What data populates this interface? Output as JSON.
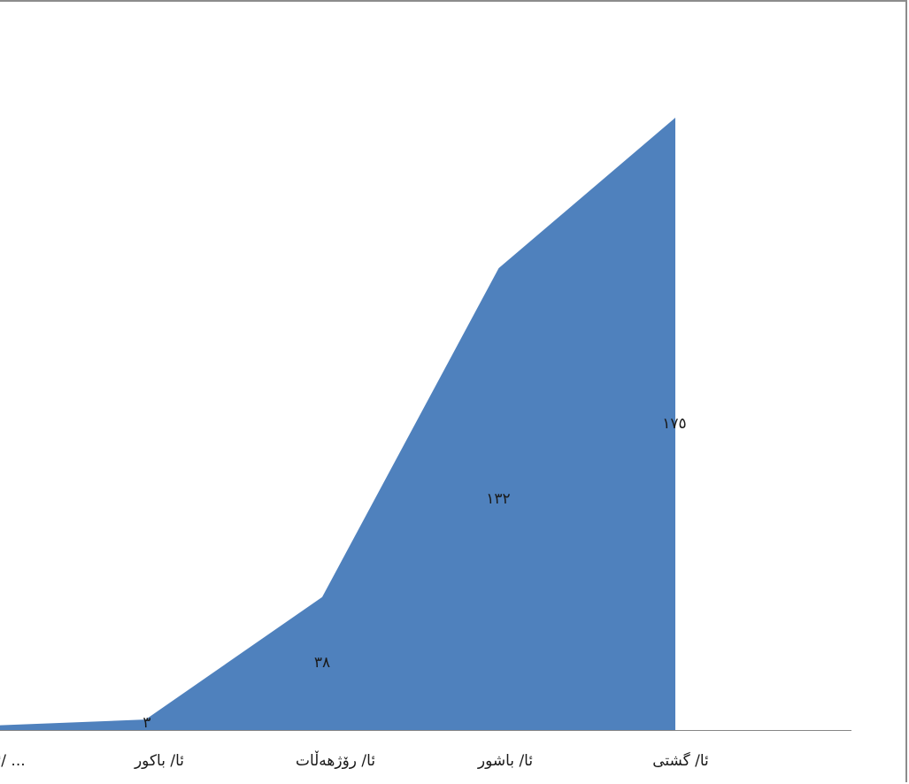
{
  "chart_data": {
    "type": "area",
    "categories": [
      "ئا/ ...",
      "ئا/ باكور",
      "ئا/ رۆژهەڵات",
      "ئا/ باشور",
      "ئا/ گشتی"
    ],
    "series": [
      {
        "values": [
          1,
          3,
          38,
          132,
          175
        ]
      }
    ],
    "data_labels": [
      "",
      "٣",
      "٣٨",
      "١٣٢",
      "١٧٥"
    ],
    "title": "",
    "xlabel": "",
    "ylabel": "",
    "ylim": [
      0,
      180
    ],
    "grid": false,
    "legend": "none",
    "fill_color": "#4f81bd",
    "axis_color": "#868686"
  }
}
